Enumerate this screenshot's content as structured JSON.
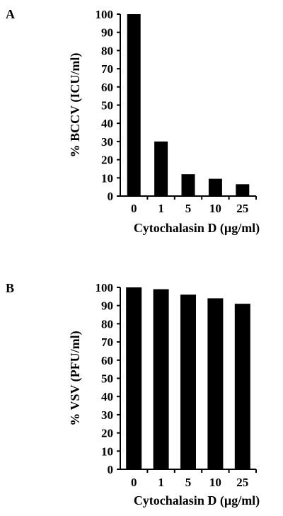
{
  "chart_data": [
    {
      "panel": "A",
      "type": "bar",
      "categories": [
        "0",
        "1",
        "5",
        "10",
        "25"
      ],
      "values": [
        100,
        30,
        12,
        9.5,
        6.5
      ],
      "xlabel": "Cytochalasin D (µg/ml)",
      "ylabel": "% BCCV (ICU/ml)",
      "ylim": [
        0,
        100
      ],
      "yticks": [
        "0",
        "10",
        "20",
        "30",
        "40",
        "50",
        "60",
        "70",
        "80",
        "90",
        "100"
      ],
      "grid": false,
      "bar_color": "#000000"
    },
    {
      "panel": "B",
      "type": "bar",
      "categories": [
        "0",
        "1",
        "5",
        "10",
        "25"
      ],
      "values": [
        100,
        99,
        96,
        94,
        91
      ],
      "xlabel": "Cytochalasin D (µg/ml)",
      "ylabel": "% VSV (PFU/ml)",
      "ylim": [
        0,
        100
      ],
      "yticks": [
        "0",
        "10",
        "20",
        "30",
        "40",
        "50",
        "60",
        "70",
        "80",
        "90",
        "100"
      ],
      "grid": false,
      "bar_color": "#000000"
    }
  ]
}
